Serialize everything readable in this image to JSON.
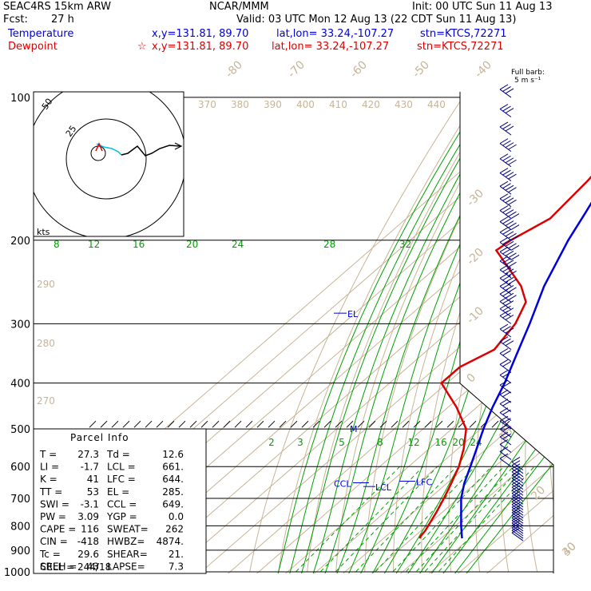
{
  "header": {
    "model": "SEAC4RS 15km ARW",
    "org": "NCAR/MMM",
    "init": "Init: 00 UTC Sun 11 Aug 13",
    "fcst_label": "Fcst:",
    "fcst_value": "27 h",
    "valid": "Valid: 03 UTC Mon 12 Aug 13 (22 CDT Sun 11 Aug 13)",
    "temp_label": "Temperature",
    "temp_xy": "x,y=131.81, 89.70",
    "temp_latlon": "lat,lon= 33.24,-107.27",
    "temp_stn": "stn=KTCS,72271",
    "dew_label": "Dewpoint",
    "dew_marker": "☆",
    "dew_xy": "x,y=131.81, 89.70",
    "dew_latlon": "lat,lon= 33.24,-107.27",
    "dew_stn": "stn=KTCS,72271",
    "barb_legend_1": "Full barb:",
    "barb_legend_2": "5 m s⁻¹"
  },
  "colors": {
    "temperature": "#0000dd",
    "dewpoint": "#dd0000",
    "isotherm": "#c8b496",
    "dry_adiabat": "#c8b496",
    "moist_adiabat": "#00a000",
    "mixing_ratio": "#00a000",
    "wind_barb": "#000080",
    "hodograph_lower": "#00c0e0"
  },
  "parcel": {
    "title": "Parcel Info",
    "rows": [
      [
        "T  =",
        "27.3",
        "Td =",
        "12.6"
      ],
      [
        "LI =",
        "-1.7",
        "LCL =",
        "661."
      ],
      [
        "K  =",
        "41",
        "LFC =",
        "644."
      ],
      [
        "TT =",
        "53",
        "EL  =",
        "285."
      ],
      [
        "SWI =",
        "-3.1",
        "CCL =",
        "649."
      ],
      [
        "PW =",
        "3.09",
        "YGP =",
        "0.0"
      ],
      [
        "CAPE =",
        "116",
        "SWEAT=",
        "262"
      ],
      [
        "CIN =",
        "-418",
        "HWBZ=",
        "4874."
      ],
      [
        "Tc =",
        "29.6",
        "SHEAR=",
        "21."
      ],
      [
        "SREH =",
        "43",
        "LAPSE=",
        "7.3"
      ]
    ],
    "cell": "CELL = 244/18"
  },
  "hodograph": {
    "ring_labels": [
      "25",
      "50"
    ],
    "units": "kts"
  },
  "chart_data": {
    "type": "line",
    "title": "",
    "ylabel": "",
    "xlabel": "",
    "y_scale": "log-pressure",
    "ylim": [
      1000,
      100
    ],
    "pressure_ticks": [
      "100",
      "200",
      "300",
      "400",
      "500",
      "600",
      "700",
      "800",
      "900",
      "1000"
    ],
    "isotherm_labels": [
      "-80",
      "-70",
      "-60",
      "-50",
      "-40",
      "-30",
      "-20",
      "-10",
      "0",
      "10",
      "20",
      "30",
      "40"
    ],
    "theta_labels": [
      "370",
      "380",
      "390",
      "400",
      "410",
      "420",
      "430",
      "440",
      "290",
      "280",
      "270"
    ],
    "moist_labels_top": [
      "8",
      "12",
      "16",
      "20",
      "24",
      "28",
      "32"
    ],
    "mixing_ratio_labels": [
      "2",
      "3",
      "5",
      "8",
      "12",
      "16",
      "20",
      "24"
    ],
    "annotations": [
      {
        "text": "EL",
        "p": 285
      },
      {
        "text": "M",
        "p": 500
      },
      {
        "text": "LFC",
        "p": 644
      },
      {
        "text": "CCL",
        "p": 649
      },
      {
        "text": "LCL",
        "p": 661
      }
    ],
    "series": [
      {
        "name": "Temperature",
        "color": "#0000dd",
        "points": [
          [
            850,
            27.3
          ],
          [
            800,
            22.0
          ],
          [
            700,
            11.0
          ],
          [
            650,
            6.0
          ],
          [
            600,
            1.5
          ],
          [
            550,
            -3.5
          ],
          [
            500,
            -9.0
          ],
          [
            450,
            -14.5
          ],
          [
            400,
            -20.0
          ],
          [
            350,
            -27.0
          ],
          [
            300,
            -35.0
          ],
          [
            250,
            -45.0
          ],
          [
            200,
            -55.0
          ],
          [
            175,
            -60.0
          ],
          [
            150,
            -66.0
          ],
          [
            125,
            -70.0
          ],
          [
            110,
            -70.0
          ],
          [
            100,
            -68.0
          ]
        ]
      },
      {
        "name": "Dewpoint",
        "color": "#dd0000",
        "points": [
          [
            850,
            12.6
          ],
          [
            840,
            12.0
          ],
          [
            820,
            11.5
          ],
          [
            750,
            8.0
          ],
          [
            700,
            5.0
          ],
          [
            650,
            1.5
          ],
          [
            600,
            -2.5
          ],
          [
            550,
            -8.0
          ],
          [
            500,
            -15.0
          ],
          [
            450,
            -27.0
          ],
          [
            400,
            -42.0
          ],
          [
            370,
            -42.0
          ],
          [
            340,
            -37.0
          ],
          [
            300,
            -40.0
          ],
          [
            270,
            -45.0
          ],
          [
            250,
            -53.0
          ],
          [
            210,
            -76.0
          ],
          [
            200,
            -75.0
          ],
          [
            180,
            -70.0
          ],
          [
            150,
            -72.0
          ],
          [
            120,
            -76.0
          ],
          [
            100,
            -80.0
          ]
        ]
      }
    ],
    "wind_barbs": [
      {
        "p": 100,
        "speed_ms": 15
      },
      {
        "p": 150,
        "speed_ms": 20
      },
      {
        "p": 200,
        "speed_ms": 25
      },
      {
        "p": 250,
        "speed_ms": 20
      },
      {
        "p": 300,
        "speed_ms": 15
      },
      {
        "p": 400,
        "speed_ms": 10
      },
      {
        "p": 500,
        "speed_ms": 10
      },
      {
        "p": 600,
        "speed_ms": 5
      },
      {
        "p": 700,
        "speed_ms": 5
      },
      {
        "p": 800,
        "speed_ms": 5
      },
      {
        "p": 850,
        "speed_ms": 5
      }
    ]
  }
}
